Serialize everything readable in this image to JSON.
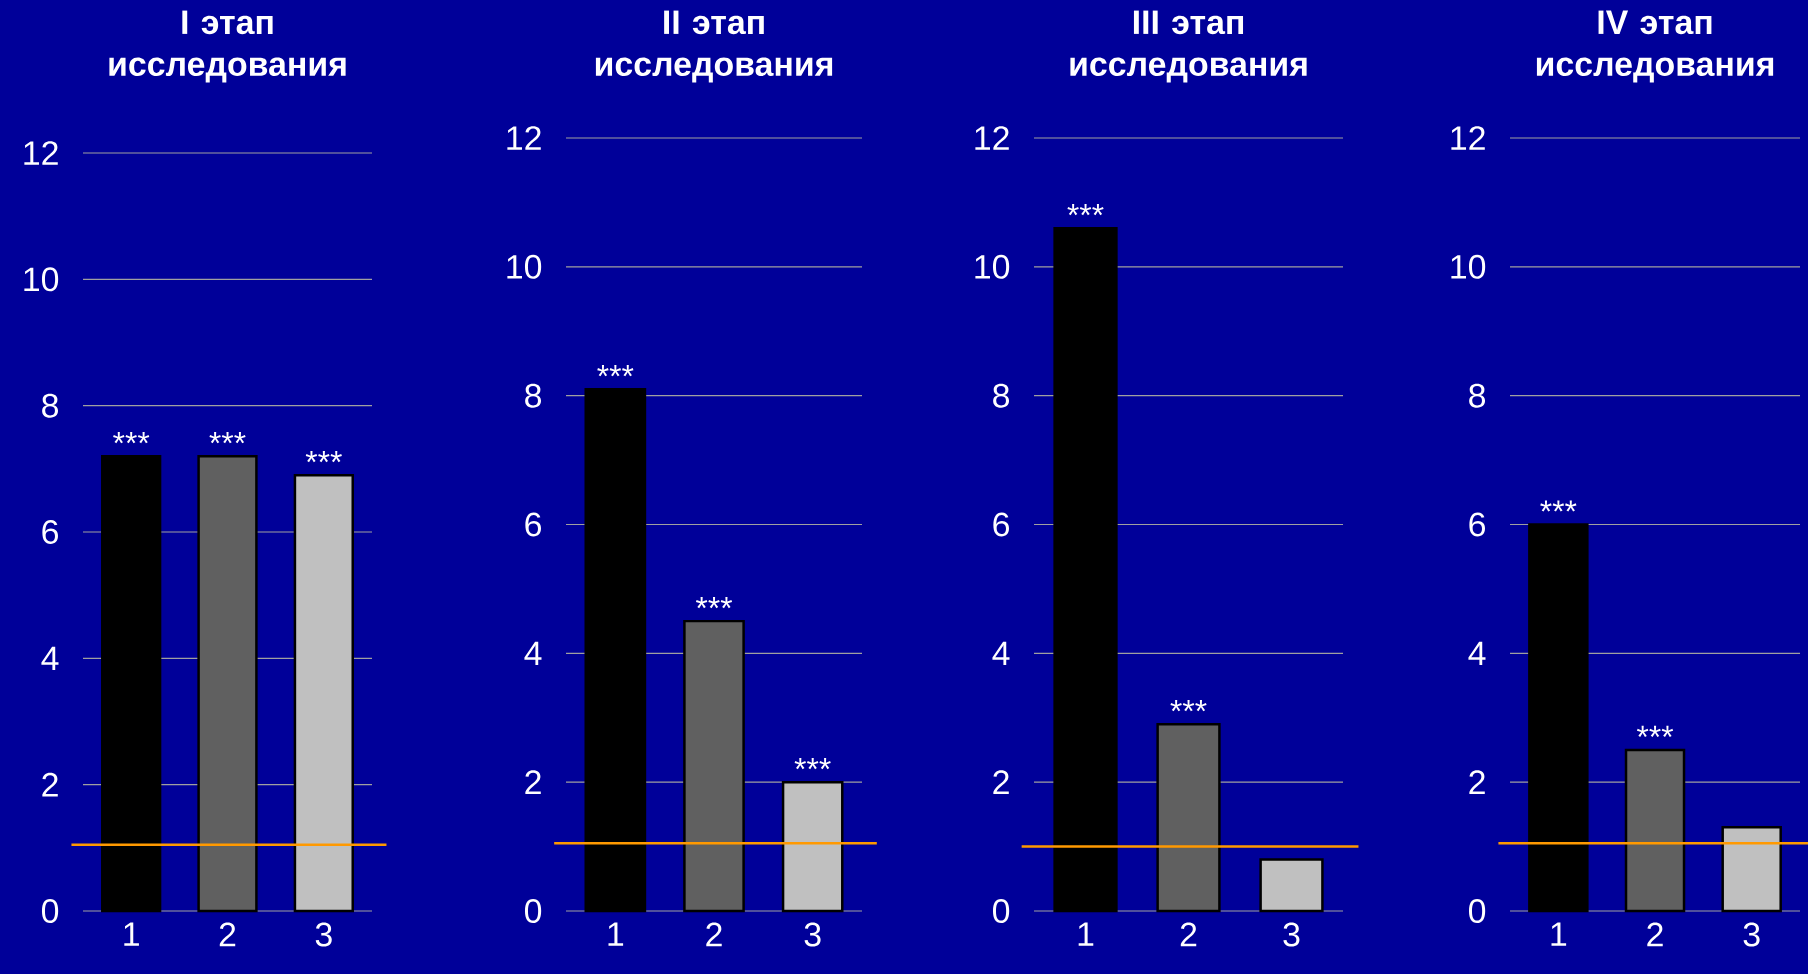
{
  "chart_data": [
    {
      "type": "bar",
      "title": "I этап исследования",
      "categories": [
        "1",
        "2",
        "3"
      ],
      "values": [
        7.2,
        7.2,
        6.9
      ],
      "colors": [
        "#000000",
        "#606060",
        "#c0c0c0"
      ],
      "ylim": [
        0,
        12
      ],
      "yticks": [
        0,
        2,
        4,
        6,
        8,
        10,
        12
      ],
      "grid": "y",
      "annotations": [
        {
          "text": "***",
          "x": "1",
          "y": 7.2
        },
        {
          "text": "***",
          "x": "2",
          "y": 7.2
        },
        {
          "text": "***",
          "x": "3",
          "y": 6.9
        }
      ],
      "ref_lines": [
        {
          "axis": "y",
          "value": 1.05,
          "color": "#ff9900"
        }
      ]
    },
    {
      "type": "bar",
      "title": "II этап исследования",
      "categories": [
        "1",
        "2",
        "3"
      ],
      "values": [
        8.1,
        4.5,
        2.0
      ],
      "colors": [
        "#000000",
        "#606060",
        "#c0c0c0"
      ],
      "ylim": [
        0,
        12
      ],
      "yticks": [
        0,
        2,
        4,
        6,
        8,
        10,
        12
      ],
      "grid": "y",
      "annotations": [
        {
          "text": "***",
          "x": "1",
          "y": 8.1
        },
        {
          "text": "***",
          "x": "2",
          "y": 4.5
        },
        {
          "text": "***",
          "x": "3",
          "y": 2.0
        }
      ],
      "ref_lines": [
        {
          "axis": "y",
          "value": 1.05,
          "color": "#ff9900"
        }
      ]
    },
    {
      "type": "bar",
      "title": "III этап исследования",
      "categories": [
        "1",
        "2",
        "3"
      ],
      "values": [
        10.6,
        2.9,
        0.8
      ],
      "colors": [
        "#000000",
        "#606060",
        "#c0c0c0"
      ],
      "ylim": [
        0,
        12
      ],
      "yticks": [
        0,
        2,
        4,
        6,
        8,
        10,
        12
      ],
      "grid": "y",
      "annotations": [
        {
          "text": "***",
          "x": "1",
          "y": 10.6
        },
        {
          "text": "***",
          "x": "2",
          "y": 2.9
        }
      ],
      "ref_lines": [
        {
          "axis": "y",
          "value": 1.0,
          "color": "#ff9900"
        }
      ]
    },
    {
      "type": "bar",
      "title": "IV этап исследования",
      "categories": [
        "1",
        "2",
        "3"
      ],
      "values": [
        6.0,
        2.5,
        1.3
      ],
      "colors": [
        "#000000",
        "#606060",
        "#c0c0c0"
      ],
      "ylim": [
        0,
        12
      ],
      "yticks": [
        0,
        2,
        4,
        6,
        8,
        10,
        12
      ],
      "grid": "y",
      "annotations": [
        {
          "text": "***",
          "x": "1",
          "y": 6.0
        },
        {
          "text": "***",
          "x": "2",
          "y": 2.5
        }
      ],
      "ref_lines": [
        {
          "axis": "y",
          "value": 1.05,
          "color": "#ff9900"
        }
      ]
    }
  ]
}
